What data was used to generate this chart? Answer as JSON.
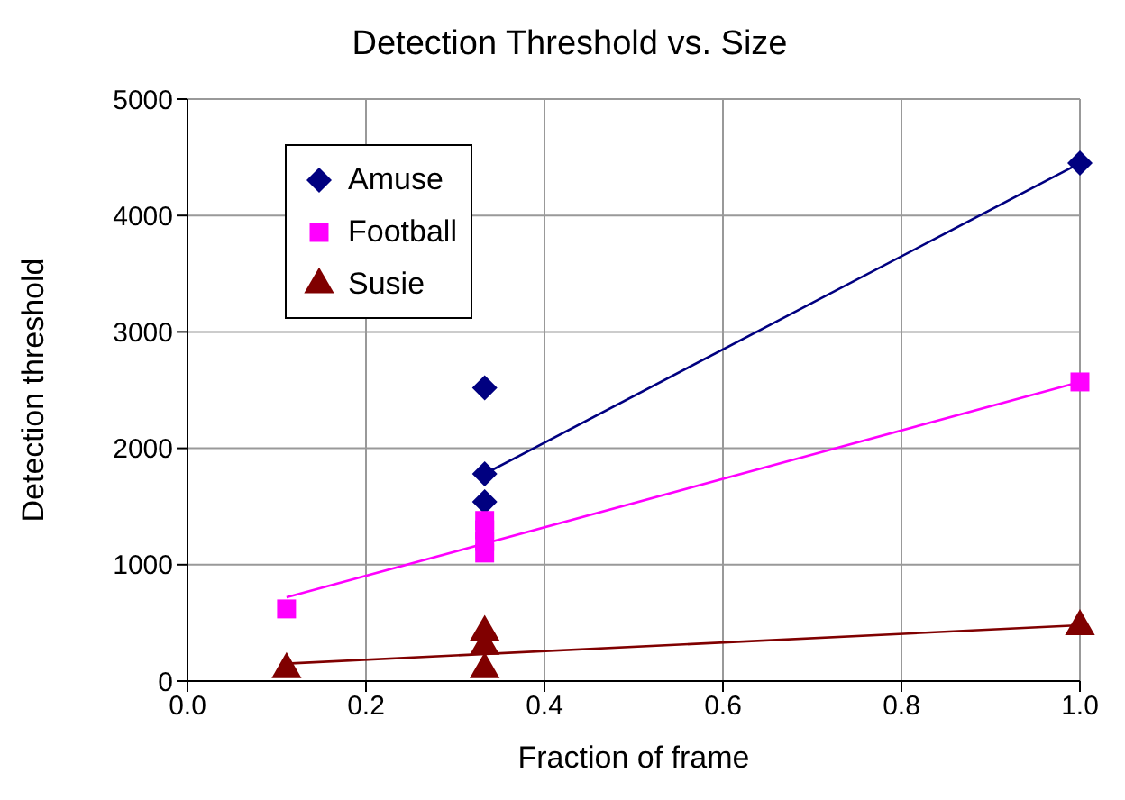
{
  "chart_data": {
    "type": "scatter",
    "title": "Detection Threshold vs. Size",
    "xlabel": "Fraction of frame",
    "ylabel": "Detection threshold",
    "xlim": [
      0,
      1
    ],
    "xticks": [
      {
        "value": 0,
        "label": "0.0"
      },
      {
        "value": 0.2,
        "label": "0.2"
      },
      {
        "value": 0.4,
        "label": "0.4"
      },
      {
        "value": 0.6,
        "label": "0.6"
      },
      {
        "value": 0.8,
        "label": "0.8"
      },
      {
        "value": 1,
        "label": "1.0"
      }
    ],
    "ylim": [
      0,
      5000
    ],
    "yticks": [
      0,
      1000,
      2000,
      3000,
      4000,
      5000
    ],
    "grid": true,
    "legend": "top left",
    "series": [
      {
        "name": "Amuse",
        "color": "#000080",
        "marker": "diamond",
        "x": [
          0.333,
          0.333,
          0.333,
          1
        ],
        "values": [
          2520,
          1780,
          1540,
          4450
        ]
      },
      {
        "name": "Football",
        "color": "#ff00ff",
        "marker": "square",
        "x": [
          0.111,
          0.333,
          0.333,
          0.333,
          0.333,
          1
        ],
        "values": [
          620,
          1100,
          1200,
          1300,
          1380,
          2570
        ]
      },
      {
        "name": "Susie",
        "color": "#800000",
        "marker": "triangle",
        "x": [
          0.111,
          0.333,
          0.333,
          0.333,
          1
        ],
        "values": [
          100,
          420,
          300,
          100,
          470
        ]
      },
      {
        "type": "line",
        "color": "#000080",
        "marker": "none",
        "x": [
          0.333,
          1
        ],
        "values": [
          1780,
          4450
        ]
      },
      {
        "type": "line",
        "color": "#ff00ff",
        "marker": "none",
        "x": [
          0.111,
          1
        ],
        "values": [
          720,
          2570
        ]
      },
      {
        "type": "line",
        "color": "#800000",
        "marker": "none",
        "x": [
          0.111,
          1
        ],
        "values": [
          150,
          480
        ]
      }
    ]
  }
}
